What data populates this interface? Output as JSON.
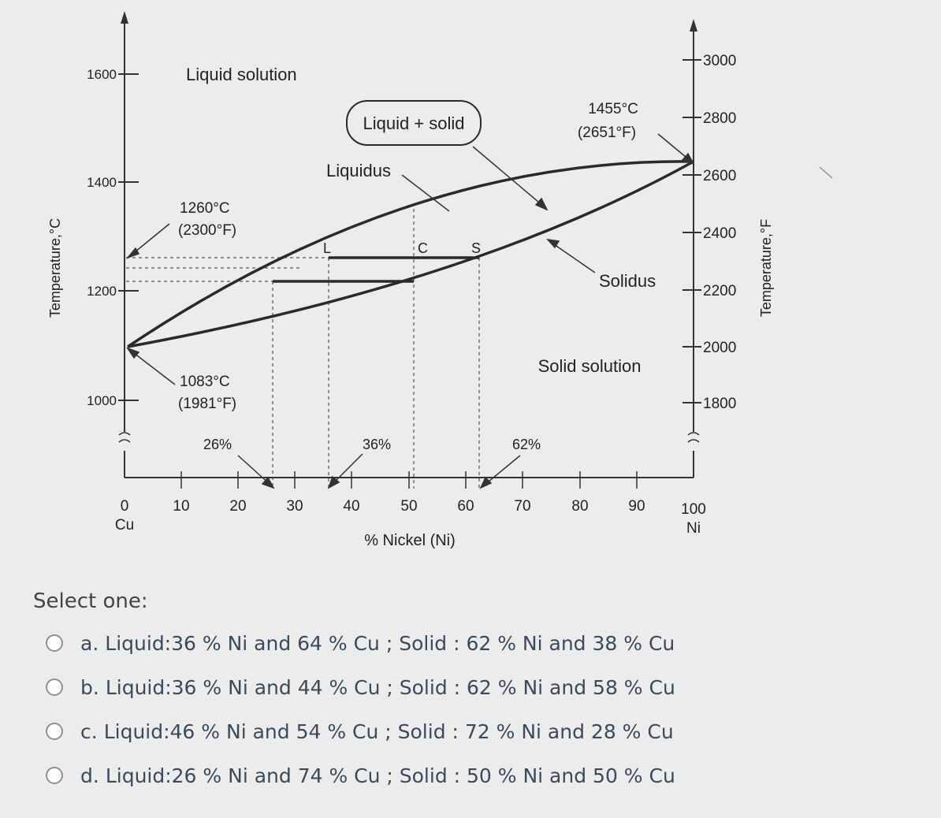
{
  "diagram": {
    "type": "phase-diagram",
    "left_axis": {
      "title": "Temperature,°C",
      "ticks": [
        "1600",
        "1400",
        "1200",
        "1000"
      ]
    },
    "right_axis": {
      "title": "Temperature,°F",
      "ticks": [
        "3000",
        "2800",
        "2600",
        "2400",
        "2200",
        "2000",
        "1800"
      ]
    },
    "x_axis": {
      "title": "% Nickel (Ni)",
      "ticks": [
        "0",
        "10",
        "20",
        "30",
        "40",
        "50",
        "60",
        "70",
        "80",
        "90",
        "100"
      ],
      "left_end": "Cu",
      "right_end": "Ni"
    },
    "regions": {
      "liquid": "Liquid solution",
      "two_phase": "Liquid + solid",
      "solid": "Solid solution"
    },
    "curves": {
      "liquidus": "Liquidus",
      "solidus": "Solidus"
    },
    "annotations": {
      "ni_melt_c": "1455°C",
      "ni_melt_f": "(2651°F)",
      "t1260_c": "1260°C",
      "t1260_f": "(2300°F)",
      "cu_melt_c": "1083°C",
      "cu_melt_f": "(1981°F)",
      "pct26": "26%",
      "pct36": "36%",
      "pct62": "62%",
      "point_l": "L",
      "point_c": "C",
      "point_s": "S"
    }
  },
  "quiz": {
    "prompt": "Select one:",
    "options": [
      {
        "letter": "a.",
        "text": "Liquid:36 % Ni and 64 % Cu ; Solid : 62 % Ni and 38 % Cu"
      },
      {
        "letter": "b.",
        "text": "Liquid:36 % Ni and 44 % Cu ; Solid : 62 % Ni and 58 % Cu"
      },
      {
        "letter": "c.",
        "text": "Liquid:46 % Ni and 54 % Cu ; Solid : 72 % Ni and 28 % Cu"
      },
      {
        "letter": "d.",
        "text": "Liquid:26 % Ni and 74 % Cu ; Solid : 50 % Ni and 50 % Cu"
      }
    ]
  }
}
